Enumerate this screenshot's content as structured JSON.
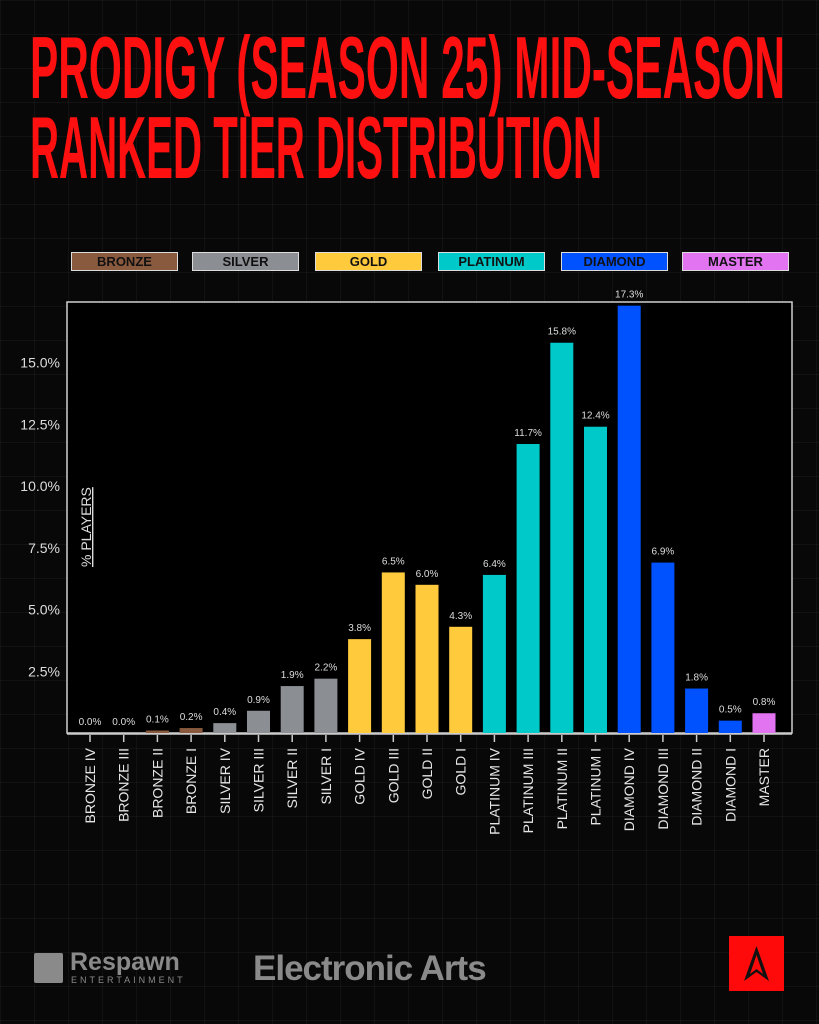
{
  "title": {
    "line1": "PRODIGY (SEASON 25) MID-SEASON",
    "line2": "RANKED TIER DISTRIBUTION"
  },
  "legend": [
    {
      "label": "BRONZE",
      "color": "#8a5a3e"
    },
    {
      "label": "SILVER",
      "color": "#8b8e92"
    },
    {
      "label": "GOLD",
      "color": "#ffcb3d"
    },
    {
      "label": "PLATINUM",
      "color": "#00c9c9"
    },
    {
      "label": "DIAMOND",
      "color": "#0052ff"
    },
    {
      "label": "MASTER",
      "color": "#e274f2"
    }
  ],
  "chart_data": {
    "type": "bar",
    "title": "PRODIGY (SEASON 25) MID-SEASON RANKED TIER DISTRIBUTION",
    "xlabel": "",
    "ylabel": "% PLAYERS",
    "ylim": [
      0,
      17.5
    ],
    "yticks": [
      "2.5%",
      "5.0%",
      "7.5%",
      "10.0%",
      "12.5%",
      "15.0%"
    ],
    "ytick_values": [
      2.5,
      5,
      7.5,
      10,
      12.5,
      15
    ],
    "categories": [
      "BRONZE IV",
      "BRONZE III",
      "BRONZE II",
      "BRONZE I",
      "SILVER IV",
      "SILVER III",
      "SILVER II",
      "SILVER I",
      "GOLD IV",
      "GOLD III",
      "GOLD II",
      "GOLD I",
      "PLATINUM IV",
      "PLATINUM III",
      "PLATINUM II",
      "PLATINUM I",
      "DIAMOND IV",
      "DIAMOND III",
      "DIAMOND II",
      "DIAMOND I",
      "MASTER"
    ],
    "values": [
      0.0,
      0.0,
      0.1,
      0.2,
      0.4,
      0.9,
      1.9,
      2.2,
      3.8,
      6.5,
      6.0,
      4.3,
      6.4,
      11.7,
      15.8,
      12.4,
      17.3,
      6.9,
      1.8,
      0.5,
      0.8
    ],
    "labels": [
      "0.0%",
      "0.0%",
      "0.1%",
      "0.2%",
      "0.4%",
      "0.9%",
      "1.9%",
      "2.2%",
      "3.8%",
      "6.5%",
      "6.0%",
      "4.3%",
      "6.4%",
      "11.7%",
      "15.8%",
      "12.4%",
      "17.3%",
      "6.9%",
      "1.8%",
      "0.5%",
      "0.8%"
    ],
    "tiers": [
      0,
      0,
      0,
      0,
      1,
      1,
      1,
      1,
      2,
      2,
      2,
      2,
      3,
      3,
      3,
      3,
      4,
      4,
      4,
      4,
      5
    ],
    "grid": false,
    "legend_position": "top"
  },
  "footer": {
    "respawn": "Respawn",
    "respawn_sub": "ENTERTAINMENT",
    "ea": "Electronic Arts"
  }
}
